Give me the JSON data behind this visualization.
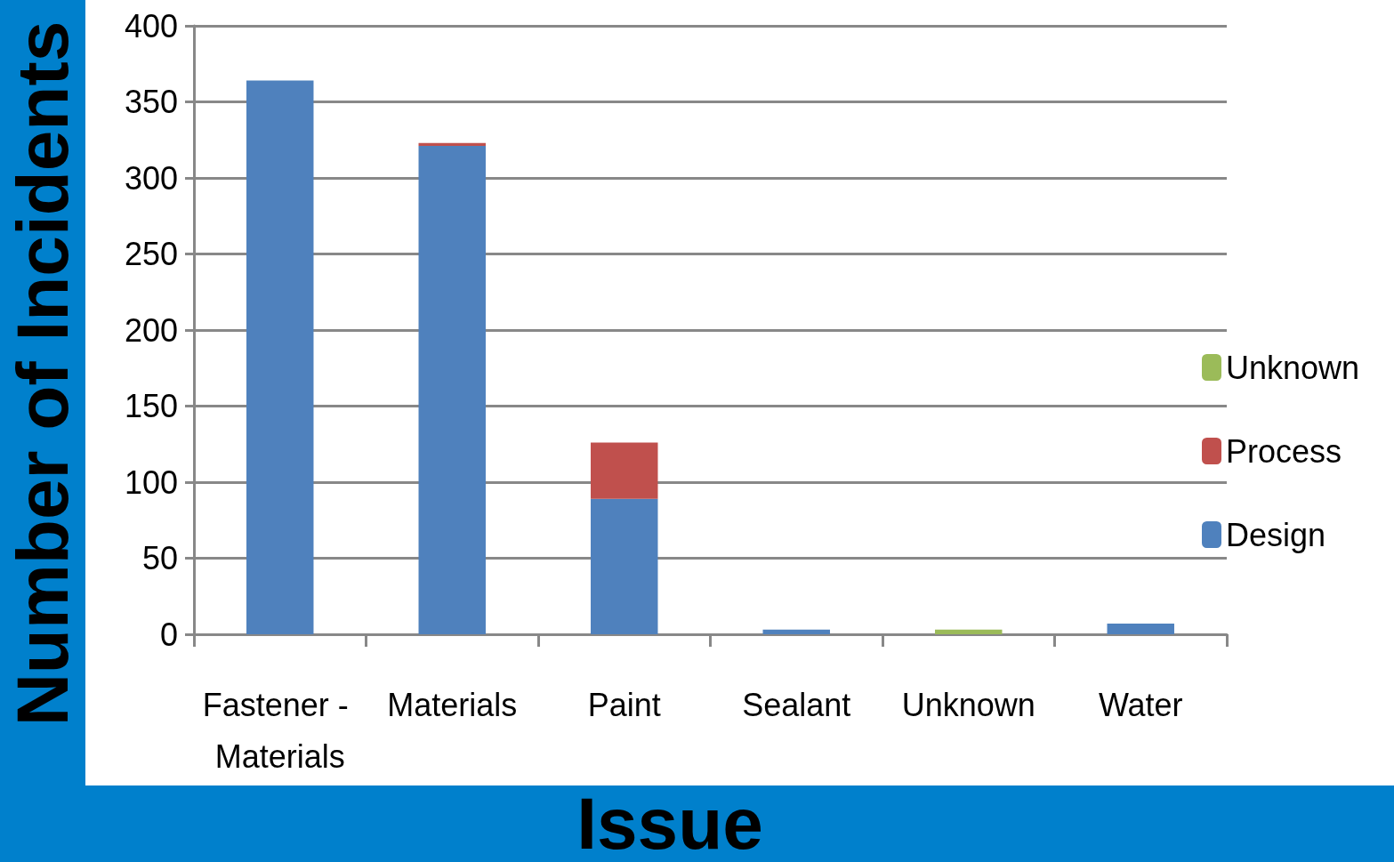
{
  "chart_data": {
    "type": "bar",
    "stacked": true,
    "xlabel": "Issue",
    "ylabel": "Number of Incidents",
    "categories": [
      "Fastener - Materials",
      "Materials",
      "Paint",
      "Sealant",
      "Unknown",
      "Water"
    ],
    "series": [
      {
        "name": "Design",
        "color": "#4f81bd",
        "values": [
          364,
          321,
          89,
          3,
          null,
          7
        ]
      },
      {
        "name": "Process",
        "color": "#c0504d",
        "values": [
          null,
          2,
          37,
          null,
          null,
          null
        ]
      },
      {
        "name": "Unknown",
        "color": "#9bbb59",
        "values": [
          null,
          null,
          null,
          null,
          3,
          null
        ]
      }
    ],
    "ylim": [
      0,
      400
    ],
    "yticks": [
      0,
      50,
      100,
      150,
      200,
      250,
      300,
      350,
      400
    ],
    "grid": "y",
    "legend": "right"
  }
}
